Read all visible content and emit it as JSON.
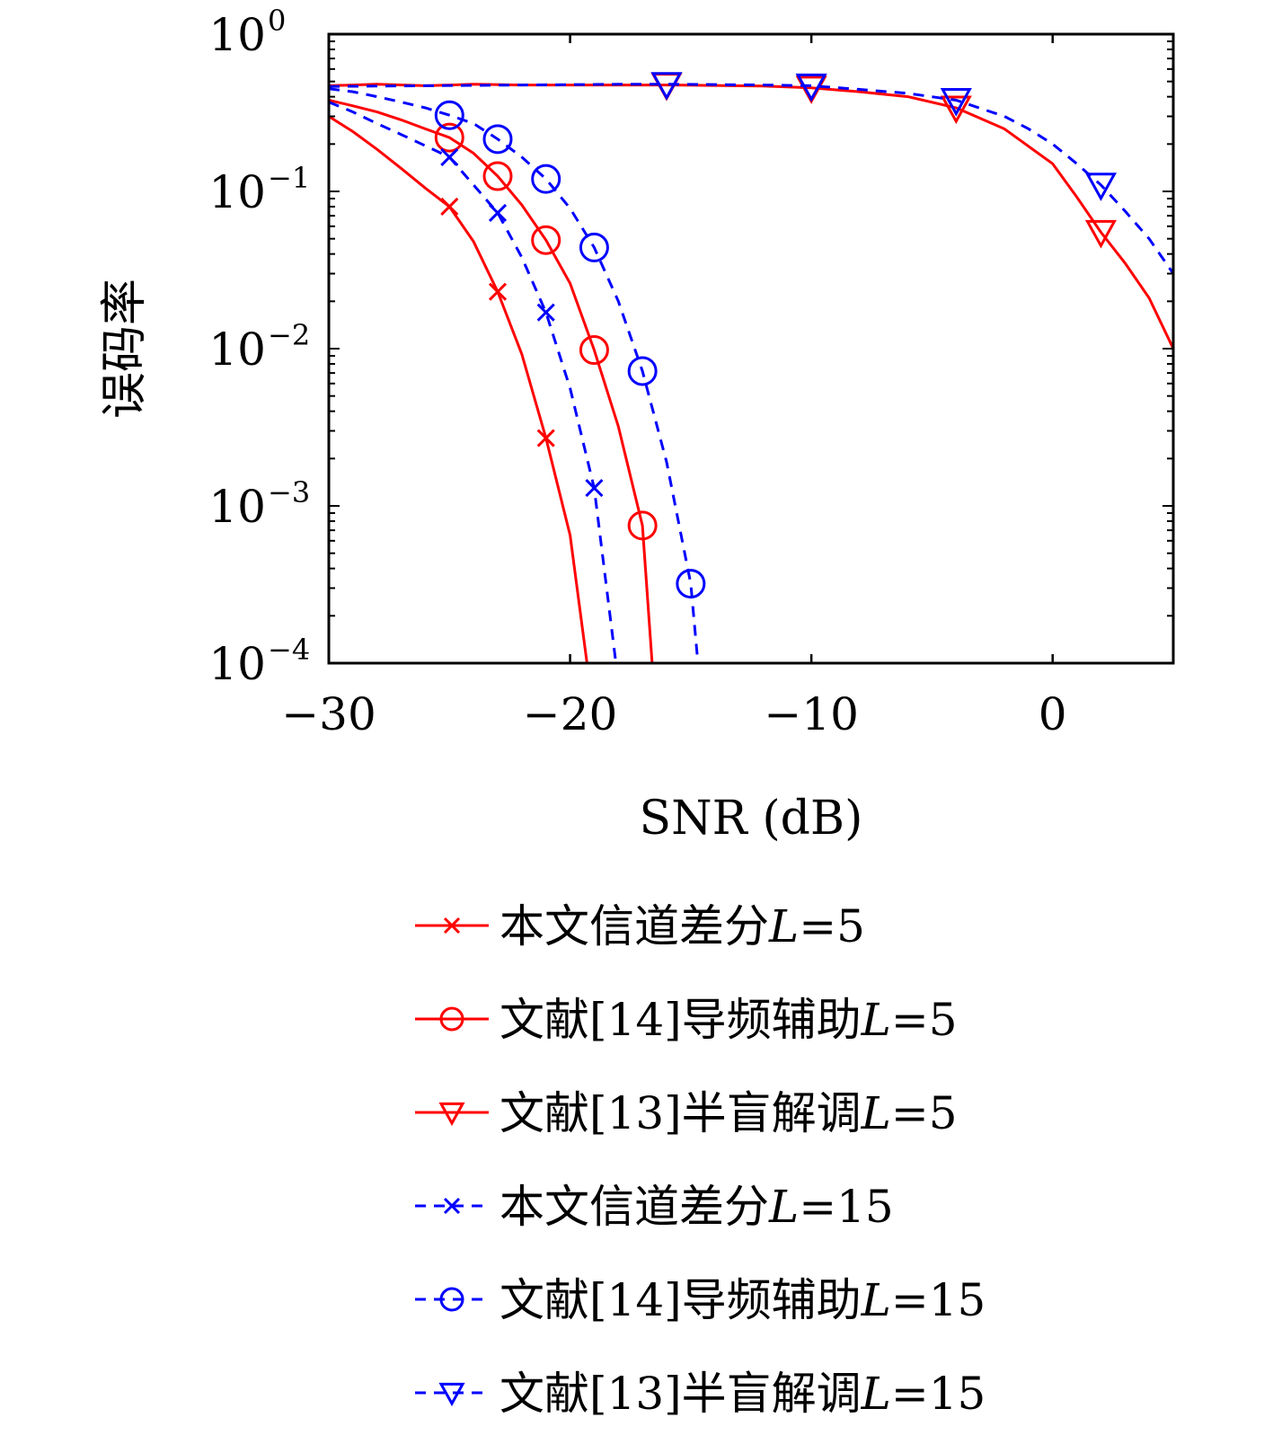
{
  "chart_data": {
    "type": "line",
    "xlabel": "SNR (dB)",
    "ylabel": "误码率",
    "xlim": [
      -30,
      5
    ],
    "ylim": [
      0.0001,
      1
    ],
    "yscale": "log",
    "xticks": [
      {
        "value": -30,
        "label": "−30"
      },
      {
        "value": -20,
        "label": "−20"
      },
      {
        "value": -10,
        "label": "−10"
      },
      {
        "value": 0,
        "label": "0"
      }
    ],
    "yticks": [
      {
        "value": 1,
        "base": "10",
        "exp": "0"
      },
      {
        "value": 0.1,
        "base": "10",
        "exp": "−1"
      },
      {
        "value": 0.01,
        "base": "10",
        "exp": "−2"
      },
      {
        "value": 0.001,
        "base": "10",
        "exp": "−3"
      },
      {
        "value": 0.0001,
        "base": "10",
        "exp": "−4"
      }
    ],
    "grid": false,
    "legend_position": "below",
    "series": [
      {
        "name": "本文信道差分L=5",
        "label_text": "本文信道差分",
        "label_L": "L",
        "label_eq": "=5",
        "color": "#ff0000",
        "dash": "solid",
        "marker": "x",
        "x": [
          -30,
          -29,
          -28,
          -27,
          -26,
          -25,
          -24,
          -23,
          -22,
          -21,
          -20,
          -19.3
        ],
        "y": [
          0.3,
          0.24,
          0.185,
          0.14,
          0.105,
          0.08,
          0.048,
          0.023,
          0.0092,
          0.0027,
          0.00065,
          0.0001
        ],
        "marker_x": [
          -25,
          -23,
          -21
        ],
        "marker_y": [
          0.08,
          0.023,
          0.0027
        ]
      },
      {
        "name": "文献[14]导频辅助L=5",
        "label_text": "文献[14]导频辅助",
        "label_L": "L",
        "label_eq": "=5",
        "color": "#ff0000",
        "dash": "solid",
        "marker": "o",
        "x": [
          -30,
          -29,
          -28,
          -27,
          -26,
          -25,
          -24,
          -23,
          -22,
          -21,
          -20,
          -19,
          -18,
          -17,
          -16.6
        ],
        "y": [
          0.38,
          0.35,
          0.32,
          0.285,
          0.25,
          0.22,
          0.175,
          0.125,
          0.082,
          0.049,
          0.026,
          0.0098,
          0.0032,
          0.00075,
          0.0001
        ],
        "marker_x": [
          -25,
          -23,
          -21,
          -19,
          -17
        ],
        "marker_y": [
          0.22,
          0.125,
          0.049,
          0.0098,
          0.00075
        ]
      },
      {
        "name": "文献[13]半盲解调L=5",
        "label_text": "文献[13]半盲解调",
        "label_L": "L",
        "label_eq": "=5",
        "color": "#ff0000",
        "dash": "solid",
        "marker": "triangle-down",
        "x": [
          -30,
          -28,
          -26,
          -24,
          -22,
          -20,
          -18,
          -16,
          -14,
          -12,
          -10,
          -8,
          -6,
          -4,
          -2,
          0,
          1,
          2,
          3,
          4,
          5
        ],
        "y": [
          0.47,
          0.48,
          0.47,
          0.48,
          0.475,
          0.475,
          0.475,
          0.475,
          0.472,
          0.468,
          0.455,
          0.43,
          0.4,
          0.34,
          0.25,
          0.15,
          0.092,
          0.055,
          0.035,
          0.021,
          0.01
        ],
        "marker_x": [
          -16,
          -10,
          -4,
          2
        ],
        "marker_y": [
          0.475,
          0.455,
          0.34,
          0.055
        ]
      },
      {
        "name": "本文信道差分L=15",
        "label_text": "本文信道差分",
        "label_L": "L",
        "label_eq": "=15",
        "color": "#0000ff",
        "dash": "dashed",
        "marker": "x",
        "x": [
          -30,
          -29,
          -28,
          -27,
          -26,
          -25,
          -24,
          -23,
          -22,
          -21,
          -20,
          -19,
          -18.1
        ],
        "y": [
          0.37,
          0.32,
          0.27,
          0.23,
          0.195,
          0.165,
          0.11,
          0.073,
          0.038,
          0.017,
          0.0056,
          0.0013,
          0.0001
        ],
        "marker_x": [
          -25,
          -23,
          -21,
          -19
        ],
        "marker_y": [
          0.165,
          0.073,
          0.017,
          0.0013
        ]
      },
      {
        "name": "文献[14]导频辅助L=15",
        "label_text": "文献[14]导频辅助",
        "label_L": "L",
        "label_eq": "=15",
        "color": "#0000ff",
        "dash": "dashed",
        "marker": "o",
        "x": [
          -30,
          -29,
          -28,
          -27,
          -26,
          -25,
          -24,
          -23,
          -22,
          -21,
          -20,
          -19,
          -18,
          -17,
          -16,
          -15,
          -14.7
        ],
        "y": [
          0.45,
          0.43,
          0.4,
          0.37,
          0.34,
          0.305,
          0.27,
          0.215,
          0.165,
          0.12,
          0.078,
          0.044,
          0.02,
          0.0072,
          0.0019,
          0.00032,
          0.0001
        ],
        "marker_x": [
          -25,
          -23,
          -21,
          -19,
          -17,
          -15
        ],
        "marker_y": [
          0.305,
          0.215,
          0.12,
          0.044,
          0.0072,
          0.00032
        ]
      },
      {
        "name": "文献[13]半盲解调L=15",
        "label_text": "文献[13]半盲解调",
        "label_L": "L",
        "label_eq": "=15",
        "color": "#0000ff",
        "dash": "dashed",
        "marker": "triangle-down",
        "x": [
          -30,
          -26,
          -22,
          -18,
          -16,
          -14,
          -12,
          -10,
          -8,
          -6,
          -4,
          -2,
          -1,
          0,
          1,
          2,
          3,
          4,
          5
        ],
        "y": [
          0.465,
          0.47,
          0.475,
          0.48,
          0.48,
          0.478,
          0.475,
          0.47,
          0.445,
          0.42,
          0.38,
          0.3,
          0.25,
          0.2,
          0.15,
          0.11,
          0.075,
          0.05,
          0.03
        ],
        "marker_x": [
          -16,
          -10,
          -4,
          2
        ],
        "marker_y": [
          0.48,
          0.47,
          0.38,
          0.11
        ]
      }
    ]
  }
}
